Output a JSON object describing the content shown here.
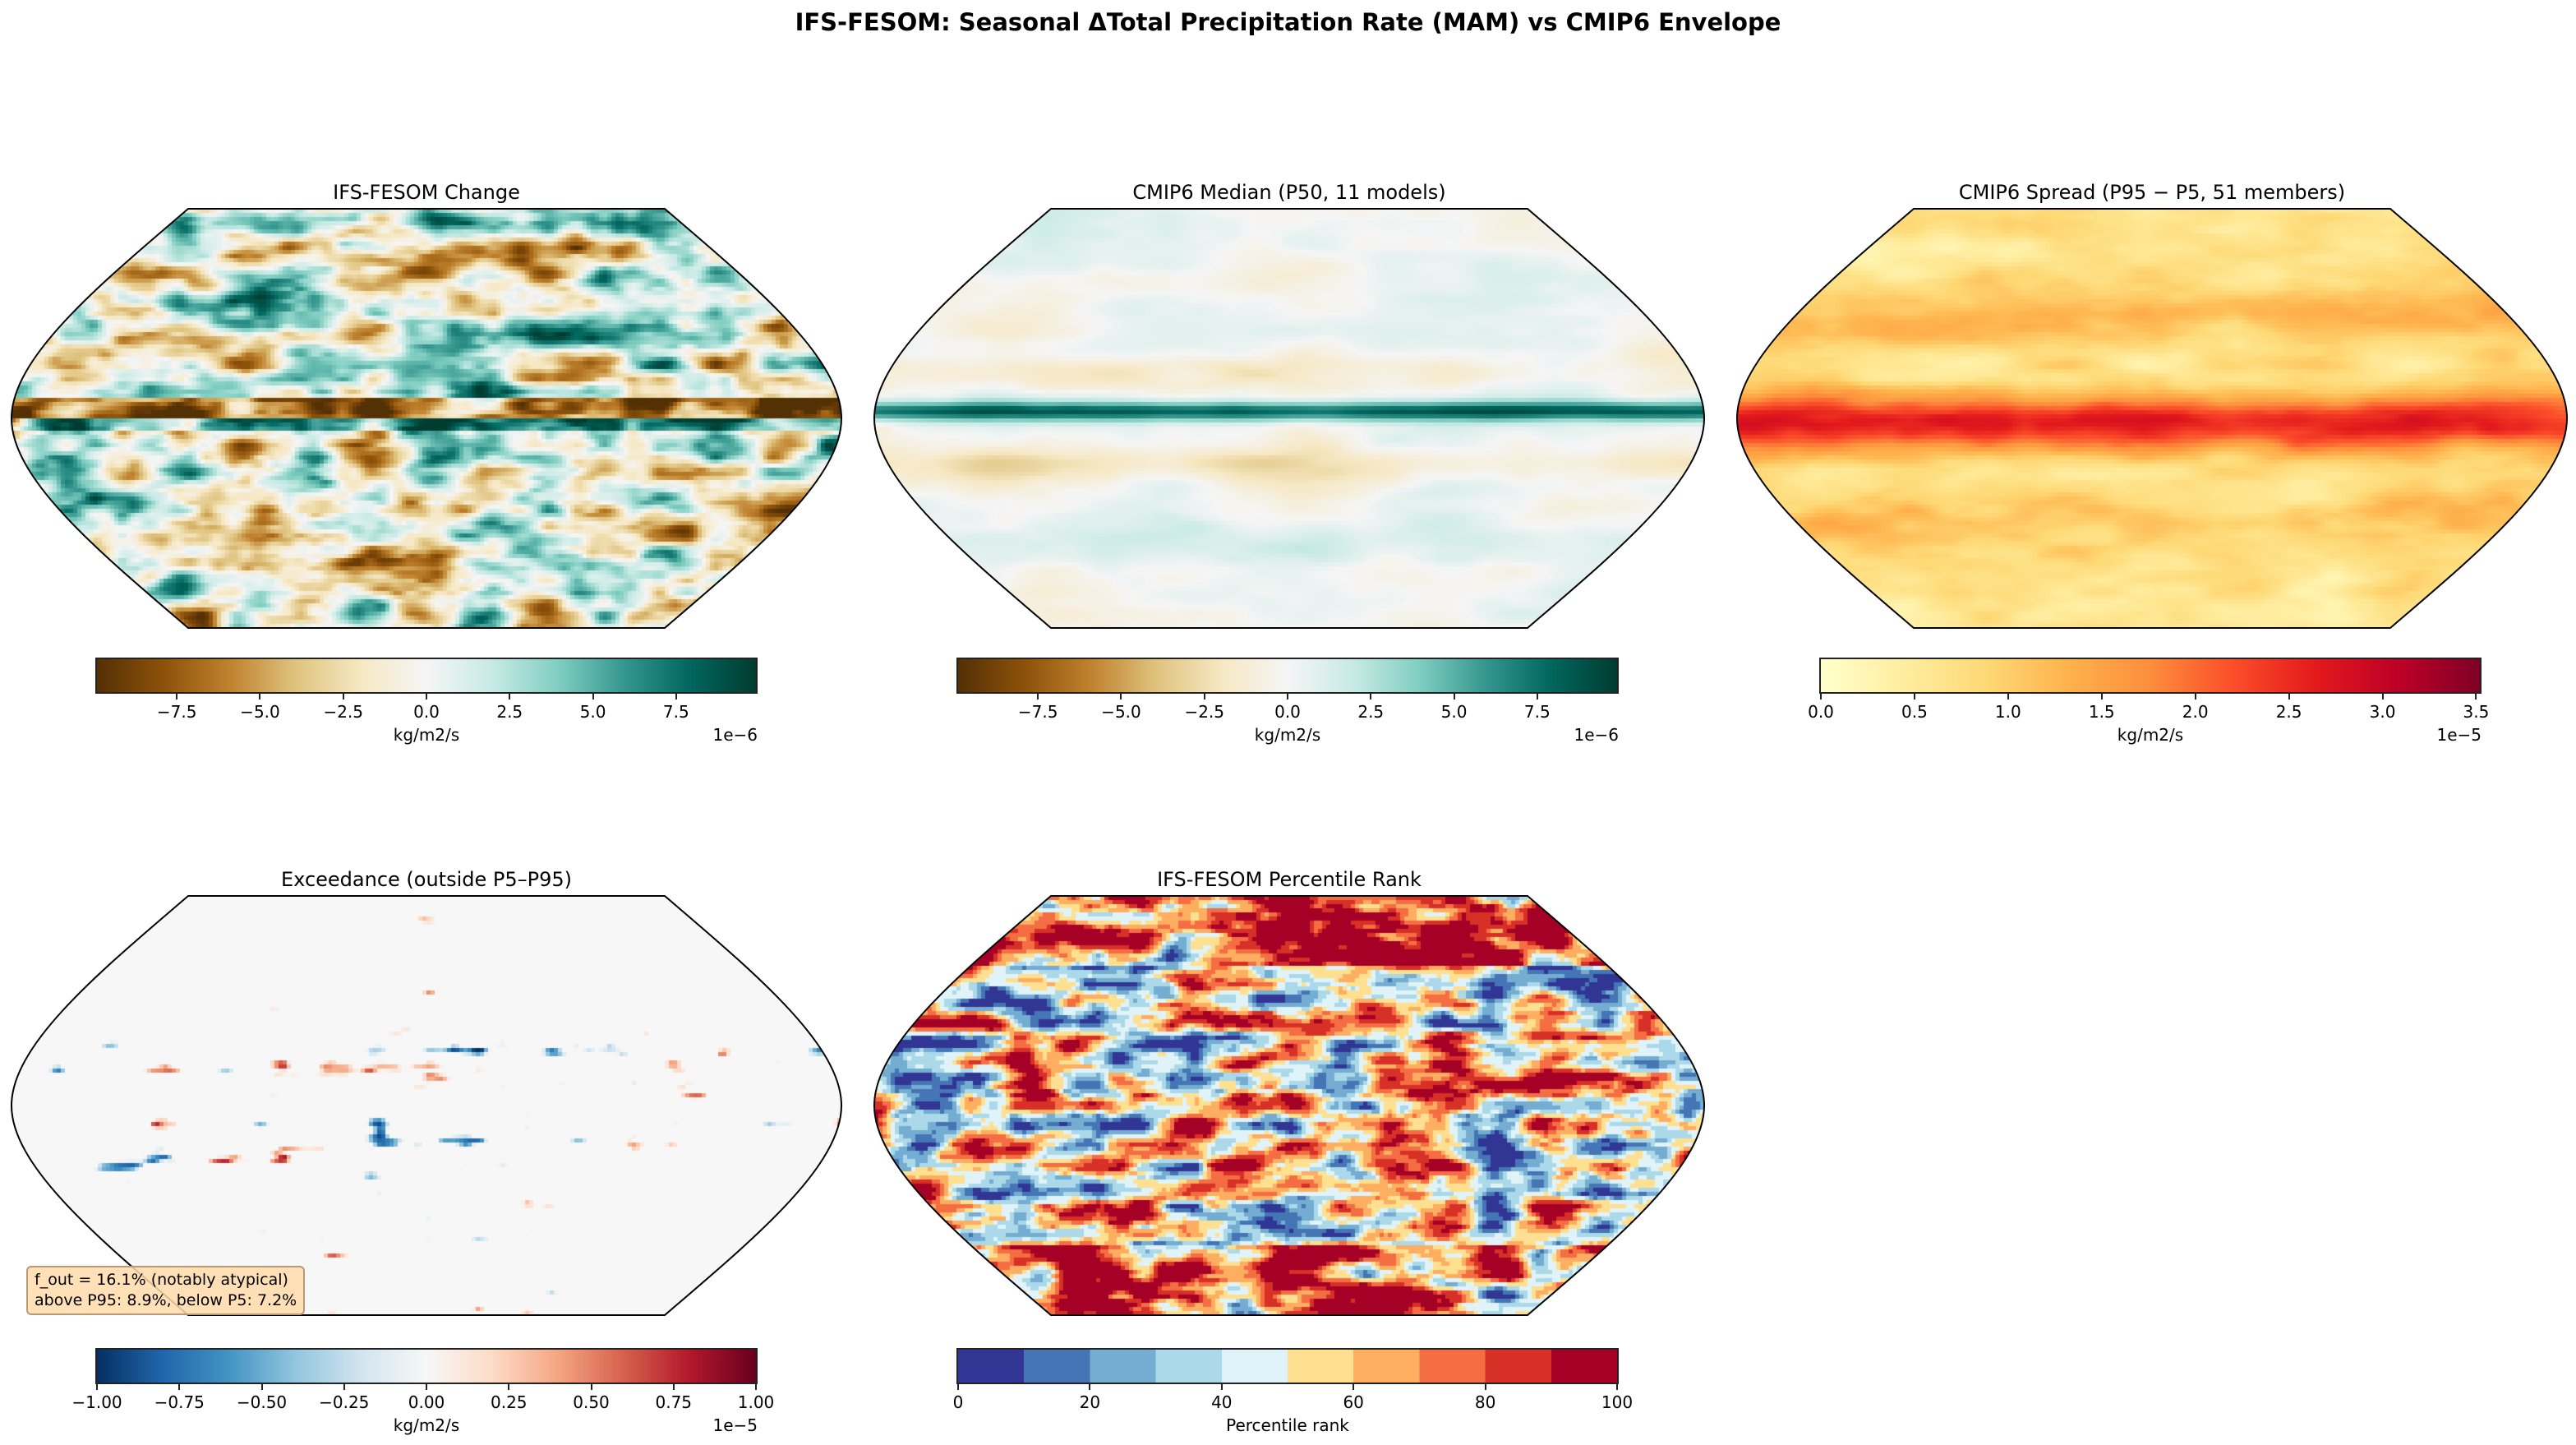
{
  "title": "IFS-FESOM: Seasonal ΔTotal Precipitation Rate (MAM) vs CMIP6 Envelope",
  "chart_data": [
    {
      "type": "heatmap",
      "title": "IFS-FESOM Change",
      "projection": "Robinson",
      "colormap": "BrBG",
      "colorbar": {
        "label": "kg/m2/s",
        "exponent": "1e−6",
        "range": [
          -9.9,
          9.9
        ],
        "ticks": [
          "−7.5",
          "−5.0",
          "−2.5",
          "0.0",
          "2.5",
          "5.0",
          "7.5"
        ],
        "tick_values": [
          -7.5,
          -5,
          -2.5,
          0,
          2.5,
          5,
          7.5
        ]
      }
    },
    {
      "type": "heatmap",
      "title": "CMIP6 Median (P50, 11 models)",
      "projection": "Robinson",
      "colormap": "BrBG",
      "colorbar": {
        "label": "kg/m2/s",
        "exponent": "1e−6",
        "range": [
          -9.9,
          9.9
        ],
        "ticks": [
          "−7.5",
          "−5.0",
          "−2.5",
          "0.0",
          "2.5",
          "5.0",
          "7.5"
        ],
        "tick_values": [
          -7.5,
          -5,
          -2.5,
          0,
          2.5,
          5,
          7.5
        ]
      }
    },
    {
      "type": "heatmap",
      "title": "CMIP6 Spread (P95 − P5, 51 members)",
      "projection": "Robinson",
      "colormap": "YlOrRd",
      "colorbar": {
        "label": "kg/m2/s",
        "exponent": "1e−5",
        "range": [
          0,
          3.52
        ],
        "ticks": [
          "0.0",
          "0.5",
          "1.0",
          "1.5",
          "2.0",
          "2.5",
          "3.0",
          "3.5"
        ],
        "tick_values": [
          0,
          0.5,
          1,
          1.5,
          2,
          2.5,
          3,
          3.5
        ]
      }
    },
    {
      "type": "heatmap",
      "title": "Exceedance (outside P5–P95)",
      "projection": "Robinson",
      "colormap": "RdBu_r",
      "annotation": [
        "f_out = 16.1% (notably atypical)",
        "above P95: 8.9%, below P5: 7.2%"
      ],
      "colorbar": {
        "label": "kg/m2/s",
        "exponent": "1e−5",
        "range": [
          -1,
          1
        ],
        "ticks": [
          "−1.00",
          "−0.75",
          "−0.50",
          "−0.25",
          "0.00",
          "0.25",
          "0.50",
          "0.75",
          "1.00"
        ],
        "tick_values": [
          -1,
          -0.75,
          -0.5,
          -0.25,
          0,
          0.25,
          0.5,
          0.75,
          1
        ]
      }
    },
    {
      "type": "heatmap",
      "title": "IFS-FESOM Percentile Rank",
      "projection": "Robinson",
      "colormap": "RdYlBu_r (10 discrete levels)",
      "colorbar": {
        "label": "Percentile rank",
        "exponent": "",
        "range": [
          0,
          100
        ],
        "ticks": [
          "0",
          "20",
          "40",
          "60",
          "80",
          "100"
        ],
        "tick_values": [
          0,
          20,
          40,
          60,
          80,
          100
        ]
      }
    }
  ]
}
